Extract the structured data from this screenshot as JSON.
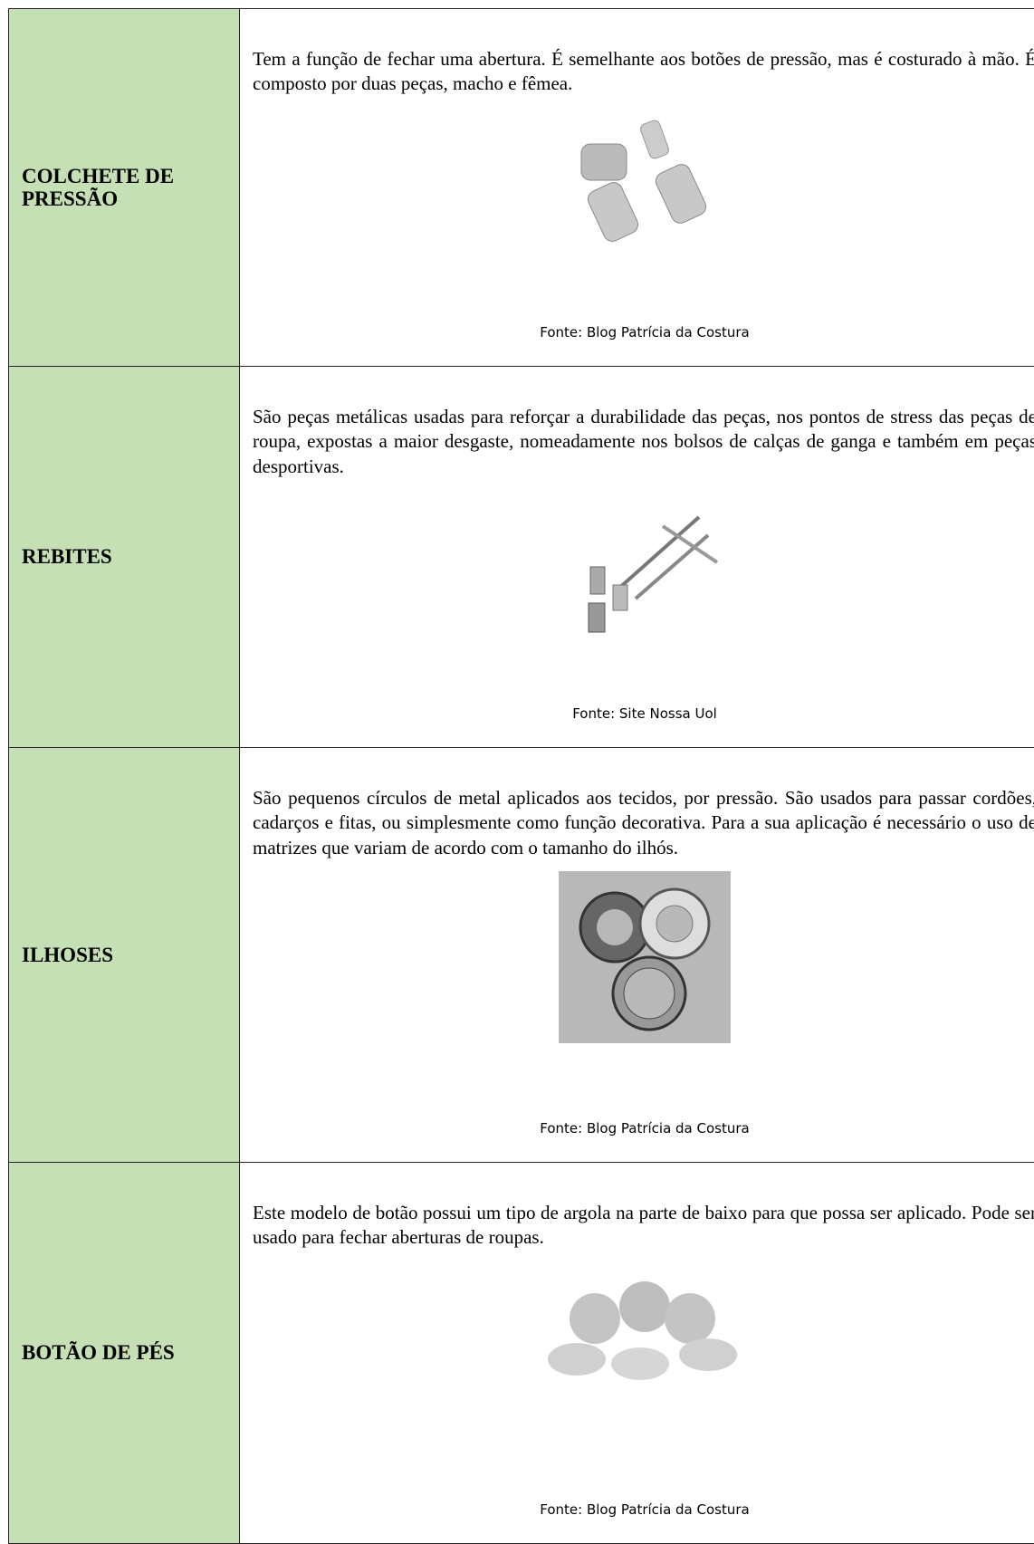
{
  "table": {
    "rows": [
      {
        "label": "COLCHETE DE PRESSÃO",
        "description": "Tem a função de fechar uma abertura. É semelhante aos botões de pressão, mas é costurado à mão. É composto por duas peças, macho e fêmea.",
        "source": "Fonte: Blog Patrícia da Costura"
      },
      {
        "label": "REBITES",
        "description": "São peças metálicas usadas para reforçar a durabilidade das peças, nos pontos de stress das peças de roupa, expostas a maior desgaste, nomeadamente nos bolsos de calças de ganga e também em peças desportivas.",
        "source": "Fonte: Site Nossa Uol"
      },
      {
        "label": "ILHOSES",
        "description": "São pequenos círculos de metal aplicados aos tecidos, por pressão. São usados para passar cordões, cadarços e fitas, ou simplesmente como função decorativa. Para a sua aplicação é necessário o uso de matrizes que variam de acordo com o tamanho do ilhós.",
        "source": "Fonte: Blog Patrícia da Costura"
      },
      {
        "label": "BOTÃO DE PÉS",
        "description": "Este modelo de botão possui um tipo de argola na parte de baixo para que possa ser aplicado. Pode ser usado para fechar aberturas de roupas.",
        "source": "Fonte: Blog Patrícia da Costura"
      }
    ]
  }
}
